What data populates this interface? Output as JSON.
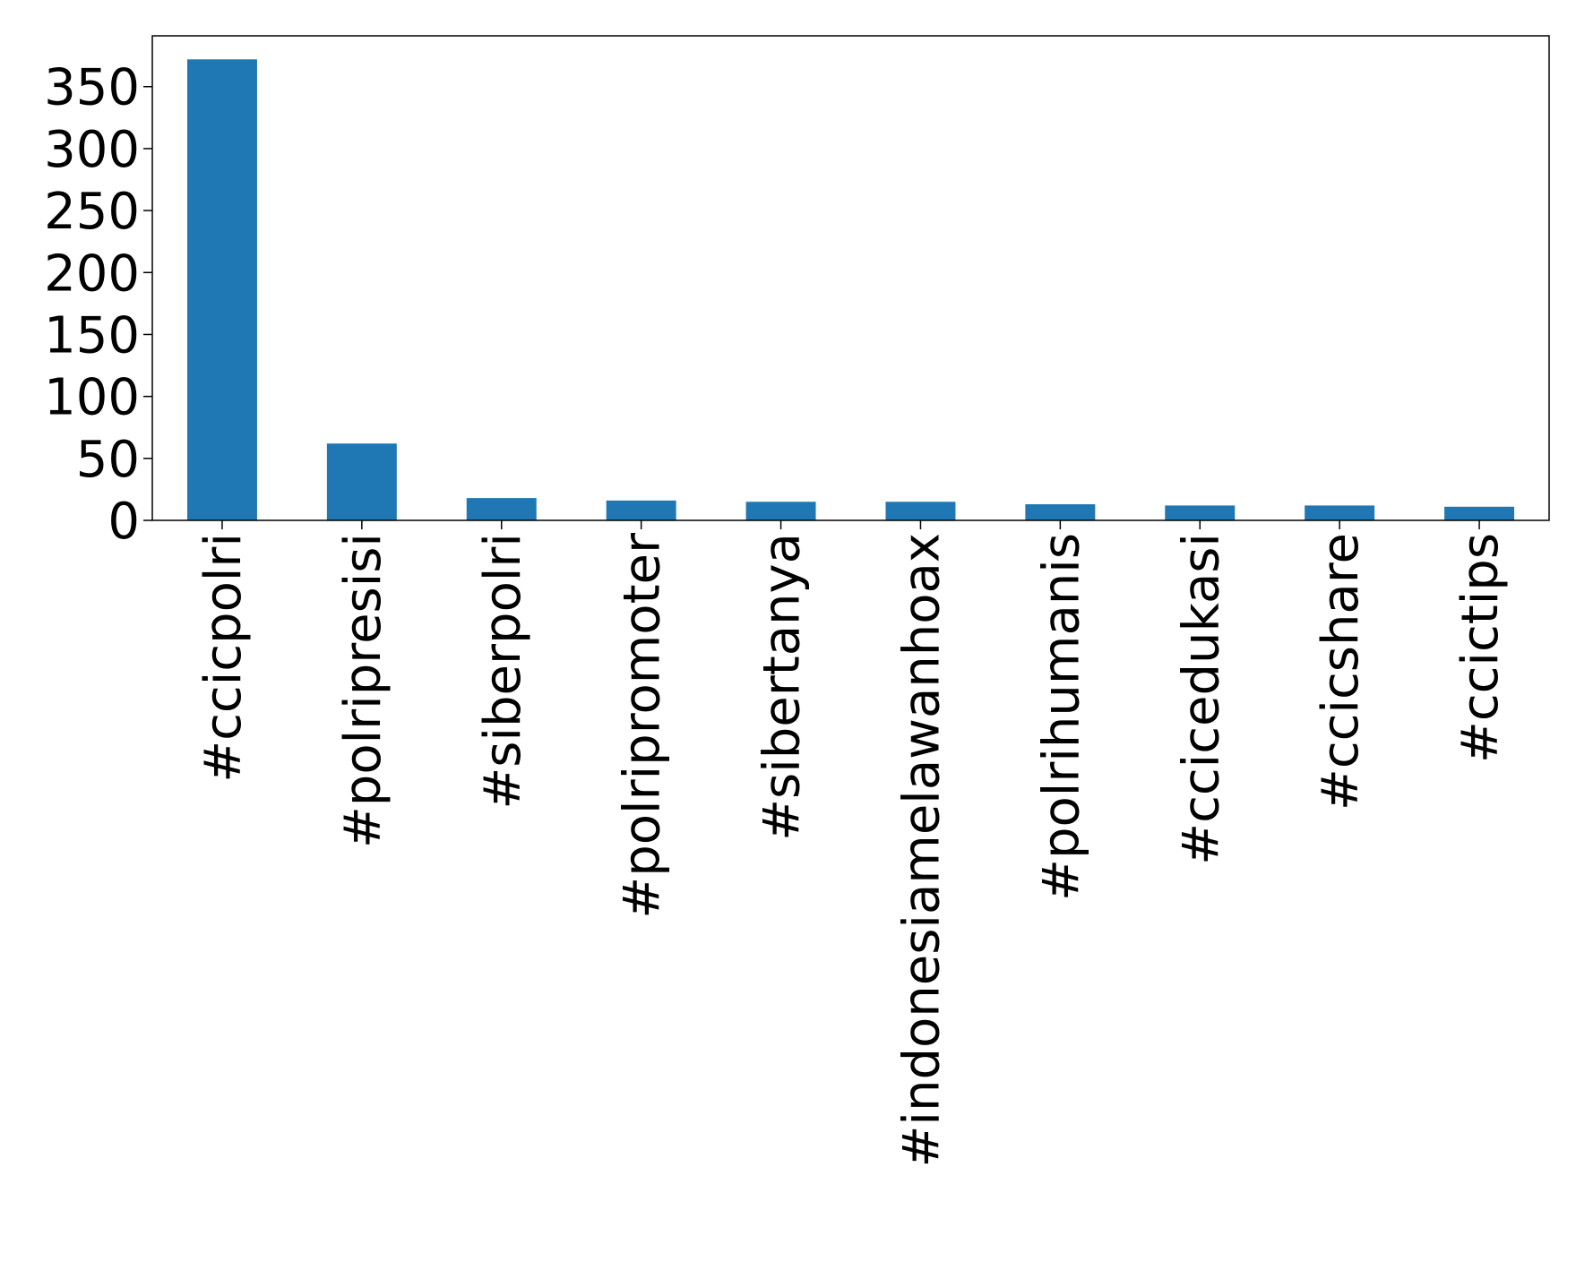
{
  "chart_data": {
    "type": "bar",
    "categories": [
      "#ccicpolri",
      "#polripresisi",
      "#siberpolri",
      "#polripromoter",
      "#sibertanya",
      "#indonesiamelawanhoax",
      "#polrihumanis",
      "#ccicedukasi",
      "#ccicshare",
      "#ccictips"
    ],
    "values": [
      372,
      62,
      18,
      16,
      15,
      15,
      13,
      12,
      12,
      11
    ],
    "color": "#1f77b4",
    "ylim": [
      0,
      391
    ],
    "yticks": [
      0,
      50,
      100,
      150,
      200,
      250,
      300,
      350
    ],
    "grid": false
  }
}
